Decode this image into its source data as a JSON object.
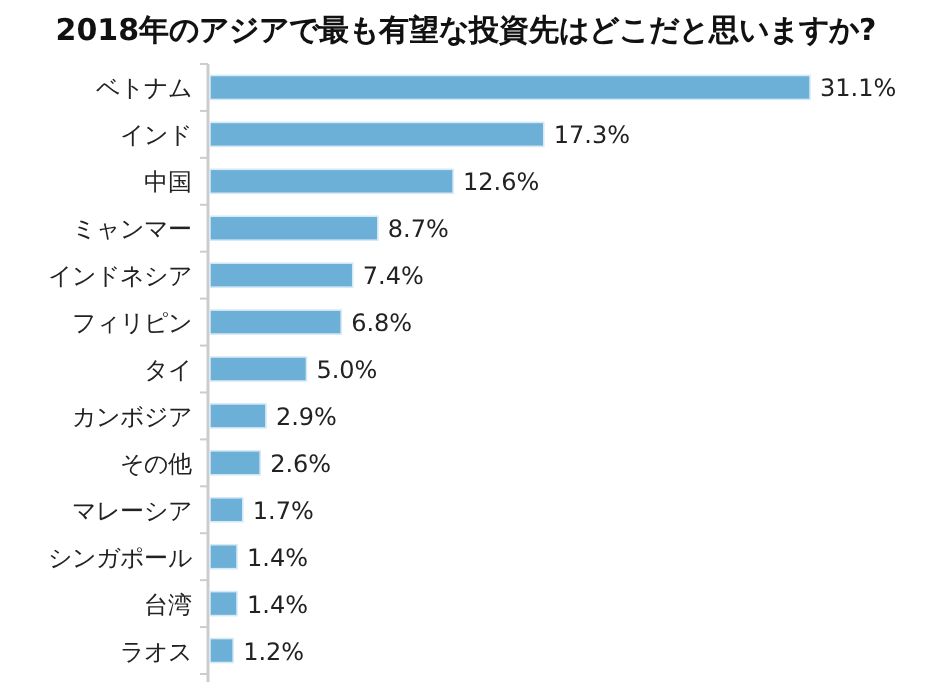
{
  "chart_data": {
    "type": "bar",
    "orientation": "horizontal",
    "title": "2018年のアジアで最も有望な投資先はどこだと思いますか?",
    "categories": [
      "ベトナム",
      "インド",
      "中国",
      "ミャンマー",
      "インドネシア",
      "フィリピン",
      "タイ",
      "カンボジア",
      "その他",
      "マレーシア",
      "シンガポール",
      "台湾",
      "ラオス"
    ],
    "values": [
      31.1,
      17.3,
      12.6,
      8.7,
      7.4,
      6.8,
      5.0,
      2.9,
      2.6,
      1.7,
      1.4,
      1.4,
      1.2
    ],
    "value_labels": [
      "31.1%",
      "17.3%",
      "12.6%",
      "8.7%",
      "7.4%",
      "6.8%",
      "5.0%",
      "2.9%",
      "2.6%",
      "1.7%",
      "1.4%",
      "1.4%",
      "1.2%"
    ],
    "color": "#6cb0d8"
  }
}
